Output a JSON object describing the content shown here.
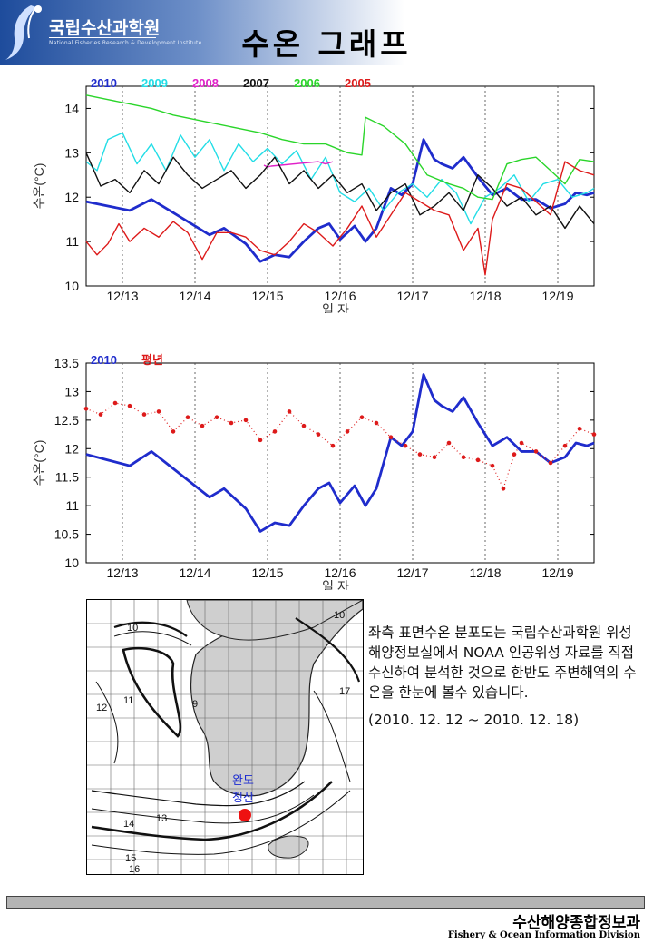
{
  "header": {
    "org_name": "국립수산과학원",
    "org_subtitle": "National Fisheries Research & Development Institute",
    "title": "수온 그래프"
  },
  "chart_data": [
    {
      "type": "line",
      "xlabel": "일 자",
      "ylabel": "수온(°C)",
      "ylim": [
        10,
        14.5
      ],
      "yticks": [
        "10",
        "11",
        "12",
        "13",
        "14"
      ],
      "categories": [
        "12/13",
        "12/14",
        "12/15",
        "12/16",
        "12/17",
        "12/18",
        "12/19"
      ],
      "xlim": [
        12.0,
        19.0
      ],
      "grid": "vertical dashed at day boundaries",
      "legend_position": "top-left",
      "series": [
        {
          "name": "2010",
          "color": "#1f2ccc",
          "x": [
            12.0,
            12.3,
            12.6,
            12.9,
            13.1,
            13.4,
            13.7,
            13.9,
            14.2,
            14.4,
            14.6,
            14.8,
            15.0,
            15.2,
            15.35,
            15.5,
            15.7,
            15.85,
            16.0,
            16.2,
            16.35,
            16.5,
            16.65,
            16.8,
            16.9,
            17.05,
            17.2,
            17.4,
            17.6,
            17.8,
            18.0,
            18.2,
            18.4,
            18.6,
            18.75,
            18.9,
            19.0
          ],
          "y": [
            11.9,
            11.8,
            11.7,
            11.95,
            11.75,
            11.45,
            11.15,
            11.3,
            10.95,
            10.55,
            10.7,
            10.65,
            11.0,
            11.3,
            11.4,
            11.05,
            11.35,
            11.0,
            11.3,
            12.2,
            12.05,
            12.3,
            13.3,
            12.85,
            12.75,
            12.65,
            12.9,
            12.45,
            12.05,
            12.2,
            11.95,
            11.95,
            11.75,
            11.85,
            12.1,
            12.05,
            12.1
          ]
        },
        {
          "name": "2009",
          "color": "#22dde6",
          "x": [
            12.0,
            12.15,
            12.3,
            12.5,
            12.7,
            12.9,
            13.1,
            13.3,
            13.5,
            13.7,
            13.9,
            14.1,
            14.3,
            14.5,
            14.7,
            14.9,
            15.1,
            15.3,
            15.5,
            15.7,
            15.9,
            16.1,
            16.3,
            16.5,
            16.7,
            16.9,
            17.1,
            17.3,
            17.5,
            17.7,
            17.9,
            18.1,
            18.3,
            18.5,
            18.7,
            18.9,
            19.0
          ],
          "y": [
            12.8,
            12.6,
            13.3,
            13.45,
            12.75,
            13.2,
            12.6,
            13.4,
            12.9,
            13.3,
            12.6,
            13.2,
            12.8,
            13.1,
            12.75,
            13.05,
            12.4,
            12.9,
            12.1,
            11.9,
            12.2,
            11.7,
            12.1,
            12.3,
            12.0,
            12.4,
            12.1,
            11.4,
            12.0,
            12.2,
            12.5,
            11.9,
            12.3,
            12.4,
            12.0,
            12.1,
            12.2
          ]
        },
        {
          "name": "2008",
          "color": "#e020c8",
          "x": [
            14.45,
            14.5,
            14.55,
            15.2,
            15.3,
            15.4
          ],
          "y": [
            12.72,
            12.68,
            12.7,
            12.8,
            12.75,
            12.8
          ]
        },
        {
          "name": "2007",
          "color": "#111111",
          "x": [
            12.0,
            12.2,
            12.4,
            12.6,
            12.8,
            13.0,
            13.2,
            13.4,
            13.6,
            13.8,
            14.0,
            14.2,
            14.4,
            14.6,
            14.8,
            15.0,
            15.2,
            15.4,
            15.6,
            15.8,
            16.0,
            16.2,
            16.4,
            16.6,
            16.8,
            17.0,
            17.2,
            17.4,
            17.6,
            17.8,
            18.0,
            18.2,
            18.4,
            18.6,
            18.8,
            19.0
          ],
          "y": [
            13.0,
            12.25,
            12.4,
            12.1,
            12.6,
            12.3,
            12.9,
            12.5,
            12.2,
            12.4,
            12.6,
            12.2,
            12.5,
            12.9,
            12.3,
            12.6,
            12.2,
            12.5,
            12.1,
            12.3,
            11.7,
            12.1,
            12.3,
            11.6,
            11.8,
            12.1,
            11.7,
            12.5,
            12.2,
            11.8,
            12.0,
            11.6,
            11.8,
            11.3,
            11.8,
            11.4
          ]
        },
        {
          "name": "2006",
          "color": "#2ad52a",
          "x": [
            12.0,
            12.3,
            12.6,
            12.9,
            13.2,
            13.5,
            13.8,
            14.1,
            14.4,
            14.7,
            15.0,
            15.3,
            15.6,
            15.8,
            15.85,
            16.1,
            16.4,
            16.7,
            17.0,
            17.2,
            17.4,
            17.6,
            17.8,
            18.0,
            18.2,
            18.4,
            18.6,
            18.8,
            19.0
          ],
          "y": [
            14.3,
            14.2,
            14.1,
            14.0,
            13.85,
            13.75,
            13.65,
            13.55,
            13.45,
            13.3,
            13.2,
            13.2,
            13.0,
            12.95,
            13.8,
            13.6,
            13.2,
            12.5,
            12.3,
            12.2,
            12.0,
            11.95,
            12.75,
            12.85,
            12.9,
            12.6,
            12.3,
            12.85,
            12.8
          ]
        },
        {
          "name": "2005",
          "color": "#dd1a1a",
          "x": [
            12.0,
            12.15,
            12.3,
            12.45,
            12.6,
            12.8,
            13.0,
            13.2,
            13.4,
            13.6,
            13.8,
            14.0,
            14.2,
            14.4,
            14.6,
            14.8,
            15.0,
            15.2,
            15.4,
            15.6,
            15.8,
            16.0,
            16.2,
            16.4,
            16.6,
            16.8,
            17.0,
            17.2,
            17.4,
            17.5,
            17.6,
            17.8,
            18.0,
            18.2,
            18.4,
            18.6,
            18.8,
            19.0
          ],
          "y": [
            11.0,
            10.7,
            10.95,
            11.4,
            11.0,
            11.3,
            11.1,
            11.45,
            11.2,
            10.6,
            11.2,
            11.2,
            11.1,
            10.8,
            10.7,
            11.0,
            11.4,
            11.2,
            10.9,
            11.3,
            11.8,
            11.1,
            11.6,
            12.1,
            11.9,
            11.7,
            11.6,
            10.8,
            11.3,
            10.25,
            11.5,
            12.3,
            12.2,
            11.9,
            11.6,
            12.8,
            12.6,
            12.5
          ]
        }
      ]
    },
    {
      "type": "line",
      "xlabel": "일 자",
      "ylabel": "수온(°C)",
      "ylim": [
        10,
        13.5
      ],
      "yticks": [
        "10",
        "10.5",
        "11",
        "11.5",
        "12",
        "12.5",
        "13",
        "13.5"
      ],
      "categories": [
        "12/13",
        "12/14",
        "12/15",
        "12/16",
        "12/17",
        "12/18",
        "12/19"
      ],
      "xlim": [
        12.0,
        19.0
      ],
      "grid": "vertical dashed at day boundaries",
      "legend_position": "top-left",
      "series": [
        {
          "name": "2010",
          "color": "#1f2ccc",
          "x": [
            12.0,
            12.3,
            12.6,
            12.9,
            13.1,
            13.4,
            13.7,
            13.9,
            14.2,
            14.4,
            14.6,
            14.8,
            15.0,
            15.2,
            15.35,
            15.5,
            15.7,
            15.85,
            16.0,
            16.2,
            16.35,
            16.5,
            16.65,
            16.8,
            16.9,
            17.05,
            17.2,
            17.4,
            17.6,
            17.8,
            18.0,
            18.2,
            18.4,
            18.6,
            18.75,
            18.9,
            19.0
          ],
          "y": [
            11.9,
            11.8,
            11.7,
            11.95,
            11.75,
            11.45,
            11.15,
            11.3,
            10.95,
            10.55,
            10.7,
            10.65,
            11.0,
            11.3,
            11.4,
            11.05,
            11.35,
            11.0,
            11.3,
            12.2,
            12.05,
            12.3,
            13.3,
            12.85,
            12.75,
            12.65,
            12.9,
            12.45,
            12.05,
            12.2,
            11.95,
            11.95,
            11.75,
            11.85,
            12.1,
            12.05,
            12.1
          ]
        },
        {
          "name": "평년",
          "color": "#dd1a1a",
          "x": [
            12.0,
            12.2,
            12.4,
            12.6,
            12.8,
            13.0,
            13.2,
            13.4,
            13.6,
            13.8,
            14.0,
            14.2,
            14.4,
            14.6,
            14.8,
            15.0,
            15.2,
            15.4,
            15.6,
            15.8,
            16.0,
            16.2,
            16.4,
            16.6,
            16.8,
            17.0,
            17.2,
            17.4,
            17.6,
            17.75,
            17.9,
            18.0,
            18.2,
            18.4,
            18.6,
            18.8,
            19.0
          ],
          "y": [
            12.7,
            12.6,
            12.8,
            12.75,
            12.6,
            12.65,
            12.3,
            12.55,
            12.4,
            12.55,
            12.45,
            12.5,
            12.15,
            12.3,
            12.65,
            12.4,
            12.25,
            12.05,
            12.3,
            12.55,
            12.45,
            12.2,
            12.05,
            11.9,
            11.85,
            12.1,
            11.85,
            11.8,
            11.7,
            11.3,
            11.9,
            12.1,
            11.95,
            11.75,
            12.05,
            12.35,
            12.25
          ]
        }
      ]
    }
  ],
  "map": {
    "station_name": "완도",
    "station_name_2": "청산",
    "station_color": "#ee1111",
    "contour_labels": [
      "10",
      "10",
      "11",
      "9",
      "12",
      "13",
      "14",
      "15",
      "16",
      "17"
    ]
  },
  "description": {
    "text": "좌측 표면수온 분포도는 국립수산과학원 위성해양정보실에서 NOAA 인공위성 자료를 직접 수신하여 분석한 것으로  한반도 주변해역의 수온을 한눈에 볼수 있습니다.",
    "period": "(2010. 12. 12 ~ 2010. 12. 18)"
  },
  "footer": {
    "title_kr": "수산해양종합정보과",
    "title_en": "Fishery & Ocean Information Division"
  }
}
